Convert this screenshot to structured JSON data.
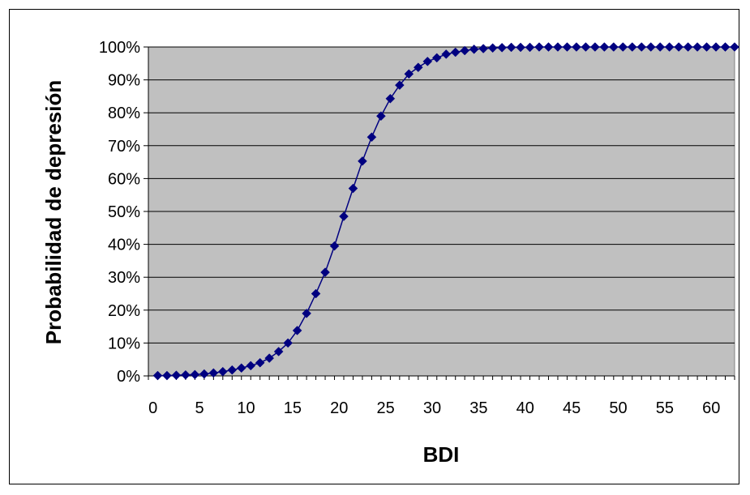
{
  "chart_data": {
    "type": "scatter",
    "xlabel": "BDI",
    "ylabel": "Probabilidad de depresión",
    "xlim": [
      0,
      63
    ],
    "ylim": [
      0,
      100
    ],
    "x_ticks": [
      0,
      5,
      10,
      15,
      20,
      25,
      30,
      35,
      40,
      45,
      50,
      55,
      60
    ],
    "y_ticks": [
      0,
      10,
      20,
      30,
      40,
      50,
      60,
      70,
      80,
      90,
      100
    ],
    "y_tick_labels": [
      "0%",
      "10%",
      "20%",
      "30%",
      "40%",
      "50%",
      "60%",
      "70%",
      "80%",
      "90%",
      "100%"
    ],
    "grid": "horizontal",
    "legend": "none",
    "colors": {
      "series": "#000080",
      "plot_background": "#c0c0c0"
    },
    "series": [
      {
        "marker": "diamond",
        "line": true,
        "x": [
          1,
          2,
          3,
          4,
          5,
          6,
          7,
          8,
          9,
          10,
          11,
          12,
          13,
          14,
          15,
          16,
          17,
          18,
          19,
          20,
          21,
          22,
          23,
          24,
          25,
          26,
          27,
          28,
          29,
          30,
          31,
          32,
          33,
          34,
          35,
          36,
          37,
          38,
          39,
          40,
          41,
          42,
          43,
          44,
          45,
          46,
          47,
          48,
          49,
          50,
          51,
          52,
          53,
          54,
          55,
          56,
          57,
          58,
          59,
          60,
          61,
          62,
          63
        ],
        "y": [
          0.1,
          0.1,
          0.2,
          0.3,
          0.4,
          0.6,
          0.9,
          1.3,
          1.8,
          2.4,
          3.1,
          4.0,
          5.4,
          7.4,
          10.0,
          13.8,
          19.0,
          25.0,
          31.5,
          39.5,
          48.5,
          57.0,
          65.3,
          72.6,
          79.0,
          84.3,
          88.4,
          91.8,
          93.8,
          95.6,
          96.7,
          97.8,
          98.4,
          98.9,
          99.3,
          99.5,
          99.7,
          99.8,
          99.9,
          99.9,
          99.9,
          100,
          100,
          100,
          100,
          100,
          100,
          100,
          100,
          100,
          100,
          100,
          100,
          100,
          100,
          100,
          100,
          100,
          100,
          100,
          100,
          100,
          100
        ]
      }
    ]
  }
}
